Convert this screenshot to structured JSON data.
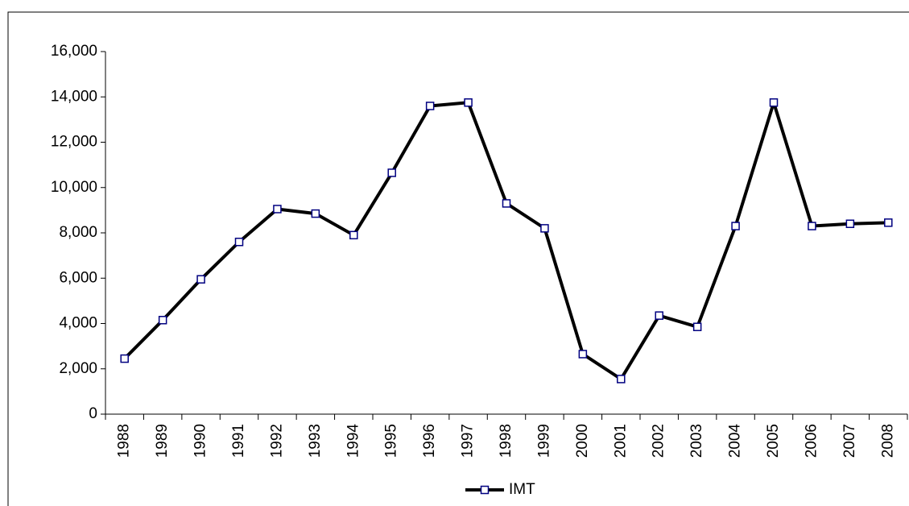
{
  "chart_data": {
    "type": "line",
    "categories": [
      "1988",
      "1989",
      "1990",
      "1991",
      "1992",
      "1993",
      "1994",
      "1995",
      "1996",
      "1997",
      "1998",
      "1999",
      "2000",
      "2001",
      "2002",
      "2003",
      "2004",
      "2005",
      "2006",
      "2007",
      "2008"
    ],
    "series": [
      {
        "name": "IMT",
        "color": "#000000",
        "marker_color": "#000080",
        "values": [
          2450,
          4150,
          5950,
          7600,
          9050,
          8850,
          7900,
          10650,
          13600,
          13750,
          9300,
          8200,
          2650,
          1550,
          4350,
          3850,
          8300,
          13750,
          8300,
          8400,
          8450
        ]
      }
    ],
    "ylim": [
      0,
      16000
    ],
    "yticks": [
      0,
      {
        "value": 2000,
        "label": "2,000"
      },
      {
        "value": 4000,
        "label": "4,000"
      },
      {
        "value": 6000,
        "label": "6,000"
      },
      {
        "value": 8000,
        "label": "8,000"
      },
      {
        "value": 10000,
        "label": "10,000"
      },
      {
        "value": 12000,
        "label": "12,000"
      },
      {
        "value": 14000,
        "label": "14,000"
      },
      {
        "value": 16000,
        "label": "16,000"
      }
    ],
    "grid": false,
    "legend": "bottom"
  }
}
